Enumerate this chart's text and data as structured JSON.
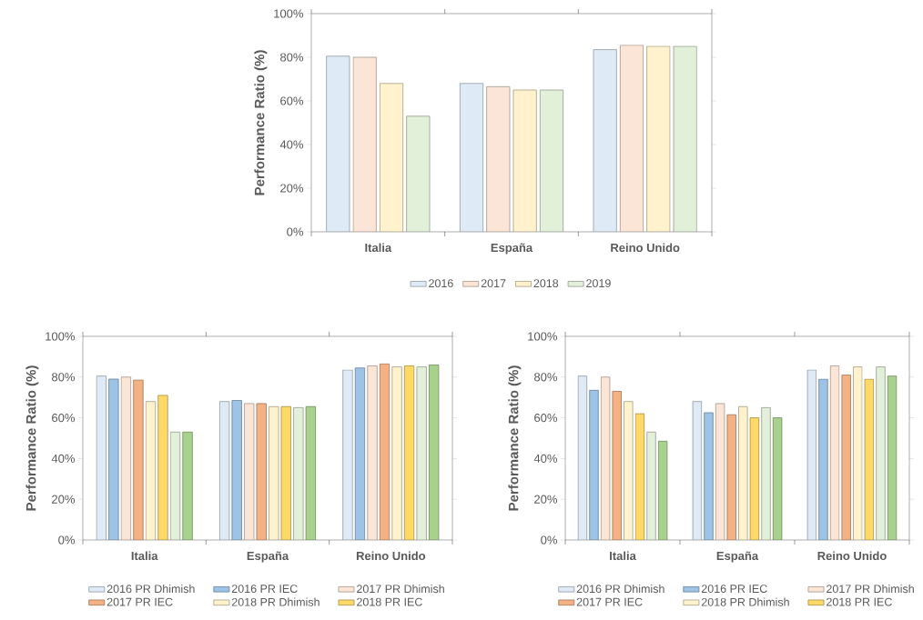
{
  "chart_data": [
    {
      "type": "bar",
      "categories": [
        "Italia",
        "España",
        "Reino Unido"
      ],
      "ylabel": "Performance Ratio (%)",
      "ylim": [
        0,
        100
      ],
      "yticks": [
        {
          "value": 0,
          "label": "0%"
        },
        {
          "value": 20,
          "label": "20%"
        },
        {
          "value": 40,
          "label": "40%"
        },
        {
          "value": 60,
          "label": "60%"
        },
        {
          "value": 80,
          "label": "80%"
        },
        {
          "value": 100,
          "label": "100%"
        }
      ],
      "legend": "bottom",
      "series": [
        {
          "name": "2016",
          "color": "#deebf7",
          "values": [
            80.5,
            68,
            83.5
          ]
        },
        {
          "name": "2017",
          "color": "#fbe5d6",
          "values": [
            80,
            66.5,
            85.5
          ]
        },
        {
          "name": "2018",
          "color": "#fff2cc",
          "values": [
            68,
            65,
            85
          ]
        },
        {
          "name": "2019",
          "color": "#e2f0d9",
          "values": [
            53,
            65,
            85
          ]
        }
      ]
    },
    {
      "type": "bar",
      "categories": [
        "Italia",
        "España",
        "Reino Unido"
      ],
      "ylabel": "Performance Ratio (%)",
      "ylim": [
        0,
        100
      ],
      "yticks": [
        {
          "value": 0,
          "label": "0%"
        },
        {
          "value": 20,
          "label": "20%"
        },
        {
          "value": 40,
          "label": "40%"
        },
        {
          "value": 60,
          "label": "60%"
        },
        {
          "value": 80,
          "label": "80%"
        },
        {
          "value": 100,
          "label": "100%"
        }
      ],
      "legend": "bottom",
      "series": [
        {
          "name": "2016 PR Dhimish",
          "color": "#deebf7",
          "values": [
            80.5,
            68,
            83.5
          ]
        },
        {
          "name": "2016 PR IEC",
          "color": "#9dc3e6",
          "values": [
            79,
            68.5,
            84.5
          ]
        },
        {
          "name": "2017 PR Dhimish",
          "color": "#fbe5d6",
          "values": [
            80,
            67,
            85.5
          ]
        },
        {
          "name": "2017 PR IEC",
          "color": "#f4b183",
          "values": [
            78.5,
            67,
            86.5
          ]
        },
        {
          "name": "2018 PR Dhimish",
          "color": "#fff2cc",
          "values": [
            68,
            65.5,
            85
          ]
        },
        {
          "name": "2018 PR IEC",
          "color": "#ffd966",
          "values": [
            71,
            65.5,
            85.5
          ]
        },
        {
          "color": "#e2f0d9",
          "values": [
            53,
            65,
            85
          ]
        },
        {
          "color": "#a9d18e",
          "values": [
            53,
            65.5,
            86
          ]
        }
      ]
    },
    {
      "type": "bar",
      "categories": [
        "Italia",
        "España",
        "Reino Unido"
      ],
      "ylabel": "Performance Ratio (%)",
      "ylim": [
        0,
        100
      ],
      "yticks": [
        {
          "value": 0,
          "label": "0%"
        },
        {
          "value": 20,
          "label": "20%"
        },
        {
          "value": 40,
          "label": "40%"
        },
        {
          "value": 60,
          "label": "60%"
        },
        {
          "value": 80,
          "label": "80%"
        },
        {
          "value": 100,
          "label": "100%"
        }
      ],
      "legend": "bottom",
      "series": [
        {
          "name": "2016 PR Dhimish",
          "color": "#deebf7",
          "values": [
            80.5,
            68,
            83.5
          ]
        },
        {
          "name": "2016 PR IEC",
          "color": "#9dc3e6",
          "values": [
            73.5,
            62.5,
            79
          ]
        },
        {
          "name": "2017 PR Dhimish",
          "color": "#fbe5d6",
          "values": [
            80,
            67,
            85.5
          ]
        },
        {
          "name": "2017 PR IEC",
          "color": "#f4b183",
          "values": [
            73,
            61.5,
            81
          ]
        },
        {
          "name": "2018 PR Dhimish",
          "color": "#fff2cc",
          "values": [
            68,
            65.5,
            85
          ]
        },
        {
          "name": "2018 PR IEC",
          "color": "#ffd966",
          "values": [
            62,
            60,
            79
          ]
        },
        {
          "color": "#e2f0d9",
          "values": [
            53,
            65,
            85
          ]
        },
        {
          "color": "#a9d18e",
          "values": [
            48.5,
            60,
            80.5
          ]
        }
      ]
    }
  ]
}
